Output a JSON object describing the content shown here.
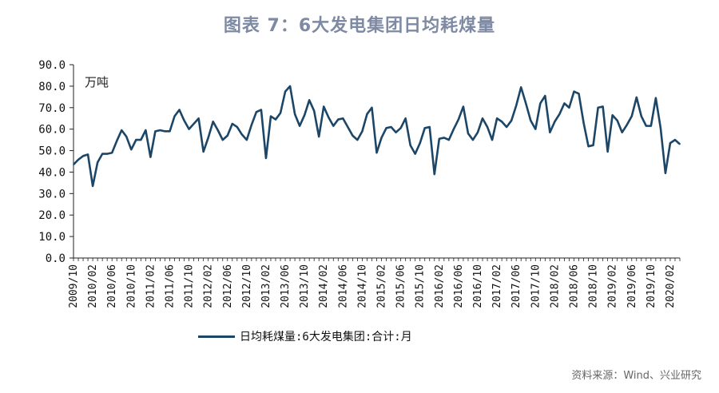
{
  "page": {
    "title": "图表 7：6大发电集团日均耗煤量",
    "unit_label": "万吨",
    "source": "资料来源：Wind、兴业研究"
  },
  "colors": {
    "line": "#1c4668",
    "title": "#7e8aa3",
    "axis": "#222222"
  },
  "chart_data": {
    "type": "line",
    "title": "图表 7：6大发电集团日均耗煤量",
    "ylabel": "万吨",
    "ylim": [
      0,
      90
    ],
    "yticks": [
      "0.0",
      "10.0",
      "20.0",
      "30.0",
      "40.0",
      "50.0",
      "60.0",
      "70.0",
      "80.0",
      "90.0"
    ],
    "grid": false,
    "legend_position": "bottom",
    "x_start": "2009-10",
    "xtick_labels": [
      "2009/10",
      "2010/02",
      "2010/06",
      "2010/10",
      "2011/02",
      "2011/06",
      "2011/10",
      "2012/02",
      "2012/06",
      "2012/10",
      "2013/02",
      "2013/06",
      "2013/10",
      "2014/02",
      "2014/06",
      "2014/10",
      "2015/02",
      "2015/06",
      "2015/10",
      "2016/02",
      "2016/06",
      "2016/10",
      "2017/02",
      "2017/06",
      "2017/10",
      "2018/02",
      "2018/06",
      "2018/10",
      "2019/02",
      "2019/06",
      "2019/10",
      "2020/02"
    ],
    "series": [
      {
        "name": "日均耗煤量:6大发电集团:合计:月",
        "values": [
          43.5,
          45.8,
          47.5,
          48.2,
          33.5,
          44.5,
          48.5,
          48.5,
          49,
          54.5,
          59.5,
          56.5,
          50.5,
          55,
          55,
          59.5,
          47,
          59,
          59.5,
          59,
          59,
          66,
          69,
          64,
          60,
          62.5,
          65,
          49.5,
          56,
          63.5,
          59.5,
          55,
          57,
          62.5,
          61,
          57.5,
          55,
          62,
          68,
          69,
          46.5,
          66,
          64.5,
          67.5,
          77.5,
          80,
          67,
          61.5,
          66.5,
          73.5,
          68.5,
          56.5,
          70.5,
          65.5,
          61.5,
          64.5,
          65,
          61,
          57,
          55,
          59,
          67,
          70,
          49,
          56,
          60.5,
          61,
          58.5,
          60.5,
          65,
          52.5,
          48.5,
          53.5,
          60.5,
          61,
          39,
          55.5,
          56,
          55,
          60,
          64.5,
          70.5,
          58,
          55,
          58.5,
          65,
          61,
          55,
          65,
          63.5,
          61,
          64,
          71,
          79.5,
          72,
          64,
          60,
          72,
          75.5,
          58.5,
          63.5,
          67,
          72,
          70,
          77.5,
          76.5,
          63,
          52,
          52.5,
          70,
          70.5,
          49.5,
          66.5,
          64,
          58.5,
          62,
          66,
          74.8,
          66,
          61.5,
          61.5,
          74.5,
          60.5,
          39.5,
          53.5,
          55,
          53
        ]
      }
    ]
  }
}
